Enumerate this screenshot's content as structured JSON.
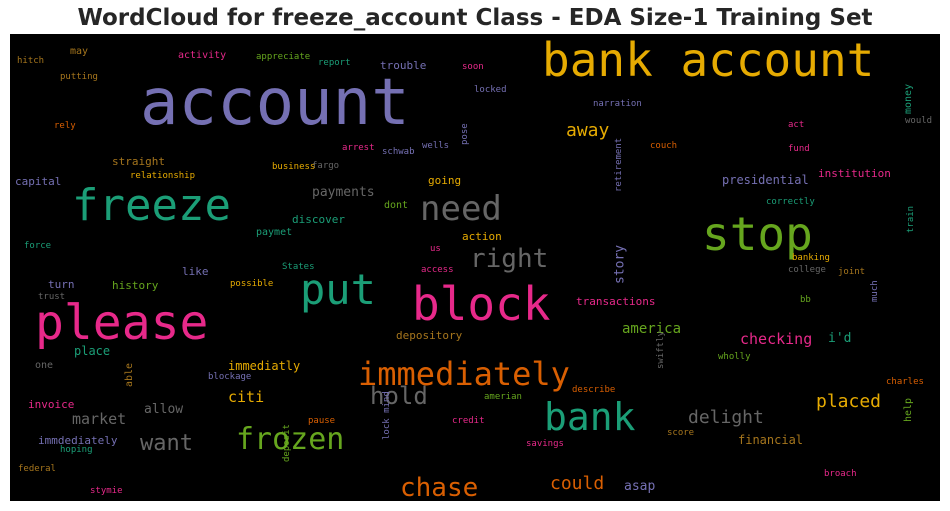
{
  "title": "WordCloud for freeze_account Class - EDA Size-1 Training Set",
  "chart_data": {
    "type": "wordcloud",
    "background": "#000000",
    "words": [
      {
        "text": "account",
        "color": "#7570b3"
      },
      {
        "text": "bank account",
        "color": "#e6ab02"
      },
      {
        "text": "freeze",
        "color": "#1b9e77"
      },
      {
        "text": "please",
        "color": "#e7298a"
      },
      {
        "text": "block",
        "color": "#e7298a"
      },
      {
        "text": "stop",
        "color": "#66a61e"
      },
      {
        "text": "put",
        "color": "#1b9e77"
      },
      {
        "text": "bank",
        "color": "#1b9e77"
      },
      {
        "text": "need",
        "color": "#666666"
      },
      {
        "text": "immediately",
        "color": "#d95f02"
      },
      {
        "text": "frozen",
        "color": "#66a61e"
      },
      {
        "text": "right",
        "color": "#666666"
      },
      {
        "text": "chase",
        "color": "#d95f02"
      },
      {
        "text": "hold",
        "color": "#666666"
      },
      {
        "text": "want",
        "color": "#666666"
      },
      {
        "text": "away",
        "color": "#e6ab02"
      },
      {
        "text": "delight",
        "color": "#666666"
      },
      {
        "text": "could",
        "color": "#d95f02"
      },
      {
        "text": "placed",
        "color": "#e6ab02"
      },
      {
        "text": "checking",
        "color": "#e7298a"
      },
      {
        "text": "citi",
        "color": "#e6ab02"
      },
      {
        "text": "market",
        "color": "#666666"
      },
      {
        "text": "america",
        "color": "#66a61e"
      },
      {
        "text": "asap",
        "color": "#7570b3"
      },
      {
        "text": "payments",
        "color": "#666666"
      },
      {
        "text": "allow",
        "color": "#666666"
      },
      {
        "text": "i'd",
        "color": "#1b9e77"
      },
      {
        "text": "story",
        "color": "#7570b3"
      },
      {
        "text": "presidential",
        "color": "#7570b3"
      },
      {
        "text": "financial",
        "color": "#a6761d"
      },
      {
        "text": "immediatly",
        "color": "#e6ab02"
      },
      {
        "text": "transactions",
        "color": "#e7298a"
      },
      {
        "text": "depository",
        "color": "#a6761d"
      },
      {
        "text": "straight",
        "color": "#a6761d"
      },
      {
        "text": "going",
        "color": "#e6ab02"
      },
      {
        "text": "action",
        "color": "#e6ab02"
      },
      {
        "text": "like",
        "color": "#7570b3"
      },
      {
        "text": "discover",
        "color": "#1b9e77"
      },
      {
        "text": "institution",
        "color": "#e7298a"
      },
      {
        "text": "place",
        "color": "#1b9e77"
      },
      {
        "text": "history",
        "color": "#66a61e"
      },
      {
        "text": "turn",
        "color": "#7570b3"
      },
      {
        "text": "trouble",
        "color": "#7570b3"
      },
      {
        "text": "capital",
        "color": "#7570b3"
      },
      {
        "text": "invoice",
        "color": "#e7298a"
      },
      {
        "text": "immdediately",
        "color": "#7570b3"
      },
      {
        "text": "dont",
        "color": "#66a61e"
      },
      {
        "text": "may",
        "color": "#a6761d"
      },
      {
        "text": "activity",
        "color": "#e7298a"
      },
      {
        "text": "paymet",
        "color": "#1b9e77"
      },
      {
        "text": "help",
        "color": "#66a61e"
      },
      {
        "text": "money",
        "color": "#1b9e77"
      },
      {
        "text": "one",
        "color": "#666666"
      },
      {
        "text": "able",
        "color": "#a6761d"
      },
      {
        "text": "appreciate",
        "color": "#66a61e"
      },
      {
        "text": "report",
        "color": "#1b9e77"
      },
      {
        "text": "soon",
        "color": "#e7298a"
      },
      {
        "text": "locked",
        "color": "#7570b3"
      },
      {
        "text": "narration",
        "color": "#7570b3"
      },
      {
        "text": "hitch",
        "color": "#a6761d"
      },
      {
        "text": "putting",
        "color": "#a6761d"
      },
      {
        "text": "rely",
        "color": "#d95f02"
      },
      {
        "text": "fargo",
        "color": "#666666"
      },
      {
        "text": "arrest",
        "color": "#e7298a"
      },
      {
        "text": "schwab",
        "color": "#7570b3"
      },
      {
        "text": "wells",
        "color": "#7570b3"
      },
      {
        "text": "pose",
        "color": "#7570b3"
      },
      {
        "text": "couch",
        "color": "#d95f02"
      },
      {
        "text": "act",
        "color": "#e7298a"
      },
      {
        "text": "would",
        "color": "#666666"
      },
      {
        "text": "fund",
        "color": "#e7298a"
      },
      {
        "text": "business",
        "color": "#e6ab02"
      },
      {
        "text": "relationship",
        "color": "#e6ab02"
      },
      {
        "text": "retirement",
        "color": "#7570b3"
      },
      {
        "text": "correctly",
        "color": "#1b9e77"
      },
      {
        "text": "force",
        "color": "#1b9e77"
      },
      {
        "text": "us",
        "color": "#e7298a"
      },
      {
        "text": "banking",
        "color": "#e6ab02"
      },
      {
        "text": "train",
        "color": "#1b9e77"
      },
      {
        "text": "college",
        "color": "#666666"
      },
      {
        "text": "joint",
        "color": "#a6761d"
      },
      {
        "text": "States",
        "color": "#1b9e77"
      },
      {
        "text": "access",
        "color": "#e7298a"
      },
      {
        "text": "trust",
        "color": "#666666"
      },
      {
        "text": "possible",
        "color": "#e6ab02"
      },
      {
        "text": "bb",
        "color": "#66a61e"
      },
      {
        "text": "much",
        "color": "#7570b3"
      },
      {
        "text": "wholly",
        "color": "#66a61e"
      },
      {
        "text": "swiftly",
        "color": "#666666"
      },
      {
        "text": "blockage",
        "color": "#7570b3"
      },
      {
        "text": "describe",
        "color": "#d95f02"
      },
      {
        "text": "charles",
        "color": "#d95f02"
      },
      {
        "text": "amerian",
        "color": "#66a61e"
      },
      {
        "text": "pause",
        "color": "#d95f02"
      },
      {
        "text": "credit",
        "color": "#e7298a"
      },
      {
        "text": "score",
        "color": "#a6761d"
      },
      {
        "text": "savings",
        "color": "#e7298a"
      },
      {
        "text": "lock mind",
        "color": "#7570b3"
      },
      {
        "text": "hoping",
        "color": "#1b9e77"
      },
      {
        "text": "federal",
        "color": "#a6761d"
      },
      {
        "text": "deposit",
        "color": "#66a61e"
      },
      {
        "text": "stymie",
        "color": "#e7298a"
      },
      {
        "text": "broach",
        "color": "#e7298a"
      }
    ]
  }
}
